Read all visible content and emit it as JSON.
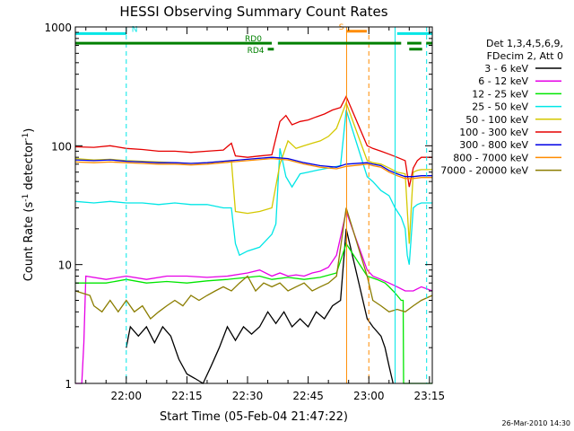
{
  "chart_data": {
    "type": "line",
    "title": "HESSI Observing Summary Count Rates",
    "xlabel": "Start Time (05-Feb-04 21:47:22)",
    "ylabel_main": "Count Rate (s",
    "ylabel_exp1": "-1",
    "ylabel_mid": " detector",
    "ylabel_exp2": "-1",
    "ylabel_end": ")",
    "timestamp": "26-Mar-2010 14:30",
    "y_scale": "log",
    "xlim_minutes": [
      -12.6,
      75.7
    ],
    "ylim": [
      1,
      1000
    ],
    "x_ticks": [
      {
        "t": 0,
        "label": "22:00"
      },
      {
        "t": 15,
        "label": "22:15"
      },
      {
        "t": 30,
        "label": "22:30"
      },
      {
        "t": 45,
        "label": "22:45"
      },
      {
        "t": 60,
        "label": "23:00"
      },
      {
        "t": 75,
        "label": "23:15"
      }
    ],
    "y_ticks": [
      {
        "v": 1,
        "label": "1"
      },
      {
        "v": 10,
        "label": "10"
      },
      {
        "v": 100,
        "label": "100"
      },
      {
        "v": 1000,
        "label": "1000"
      }
    ],
    "legend": {
      "placement": "right",
      "header": [
        "Det 1,3,4,5,6,9,",
        "FDecim 2, Att 0"
      ],
      "entries": [
        {
          "label": "3 - 6 keV",
          "color": "#000000"
        },
        {
          "label": "6 - 12 keV",
          "color": "#e600e6"
        },
        {
          "label": "12 - 25 keV",
          "color": "#00e600"
        },
        {
          "label": "25 - 50 keV",
          "color": "#00e6e6"
        },
        {
          "label": "50 - 100 keV",
          "color": "#d4c800"
        },
        {
          "label": "100 - 300 keV",
          "color": "#e60000"
        },
        {
          "label": "300 - 800 keV",
          "color": "#0000e6"
        },
        {
          "label": "800 - 7000 keV",
          "color": "#ff8c00"
        },
        {
          "label": "7000 - 20000 keV",
          "color": "#8b7d00"
        }
      ]
    },
    "flags": [
      {
        "label": "N",
        "color": "#00e6e6",
        "y": 880,
        "segments": [
          [
            -12.6,
            0
          ],
          [
            67,
            75.7
          ]
        ]
      },
      {
        "label": "S",
        "color": "#ff8c00",
        "y": 920,
        "segments": [
          [
            54.5,
            59.5
          ]
        ]
      },
      {
        "label": "RD0",
        "color": "#008000",
        "y": 730,
        "segments": [
          [
            -12.6,
            36
          ],
          [
            37.5,
            68
          ],
          [
            69.5,
            73
          ],
          [
            74.2,
            75.7
          ]
        ]
      },
      {
        "label": "RD4",
        "color": "#008000",
        "y": 650,
        "segments": [
          [
            35,
            36.5
          ],
          [
            70,
            73.2
          ]
        ]
      }
    ],
    "vlines": [
      {
        "t": 0,
        "color": "#00e6e6",
        "style": "dashed"
      },
      {
        "t": 54.5,
        "color": "#ff8c00",
        "style": "solid"
      },
      {
        "t": 60,
        "color": "#ff8c00",
        "style": "dashed"
      },
      {
        "t": 66.5,
        "color": "#00e6e6",
        "style": "solid"
      },
      {
        "t": 74.3,
        "color": "#00e6e6",
        "style": "dashed"
      }
    ],
    "series": [
      {
        "name": "3 - 6 keV",
        "color": "#000000",
        "x": [
          -12.6,
          -9,
          -5,
          -1,
          0,
          1,
          3,
          5,
          7,
          9,
          11,
          13,
          15,
          17,
          19,
          21,
          23,
          25,
          27,
          29,
          31,
          33,
          35,
          37,
          39,
          41,
          43,
          45,
          47,
          49,
          51,
          53,
          54.4,
          59.6,
          61,
          63,
          64,
          65,
          66
        ],
        "y": [
          null,
          null,
          null,
          null,
          2,
          3,
          2.5,
          3,
          2.2,
          3,
          2.5,
          1.6,
          1.2,
          1.1,
          1,
          1.4,
          2,
          3,
          2.3,
          3,
          2.6,
          3,
          4,
          3.2,
          4,
          3,
          3.5,
          3,
          4,
          3.5,
          4.5,
          5,
          20,
          3.5,
          3,
          2.5,
          2,
          1.4,
          1
        ]
      },
      {
        "name": "6 - 12 keV",
        "color": "#e600e6",
        "x": [
          -12.6,
          -11,
          -10.5,
          -10,
          -5,
          0,
          5,
          10,
          15,
          20,
          25,
          30,
          33,
          36,
          38,
          40,
          42,
          44,
          46,
          48,
          50,
          52,
          54.4,
          59.6,
          61,
          63,
          65,
          67,
          69,
          71,
          73,
          75.7
        ],
        "y": [
          1,
          1,
          2.2,
          8,
          7.5,
          8,
          7.5,
          8,
          8,
          7.8,
          8,
          8.5,
          9,
          8,
          8.5,
          8,
          8.2,
          8,
          8.5,
          8.8,
          9.5,
          12,
          28,
          9,
          8,
          7.5,
          7,
          6.5,
          6,
          6,
          6.5,
          6
        ]
      },
      {
        "name": "12 - 25 keV",
        "color": "#00e600",
        "x": [
          -12.6,
          -5,
          0,
          5,
          10,
          15,
          20,
          25,
          30,
          33,
          36,
          40,
          44,
          48,
          52,
          54.4,
          59.6,
          62,
          64,
          65,
          66,
          67,
          68,
          68.5,
          68.6,
          70,
          73,
          75.7
        ],
        "y": [
          7,
          7,
          7.5,
          7,
          7.2,
          7,
          7.3,
          7.5,
          7.8,
          8,
          7.5,
          7.8,
          7.5,
          7.8,
          8.5,
          15,
          8,
          7.5,
          7,
          6.5,
          6,
          5.5,
          5,
          5,
          1,
          1,
          1,
          1
        ]
      },
      {
        "name": "25 - 50 keV",
        "color": "#00e6e6",
        "x": [
          -12.6,
          -8,
          -4,
          0,
          4,
          8,
          12,
          16,
          20,
          24,
          26,
          27,
          28,
          30,
          33,
          36,
          37,
          38,
          39.5,
          41,
          43,
          45,
          47,
          49,
          51,
          53,
          54.4,
          59.6,
          61,
          63,
          65,
          66.5,
          68,
          69,
          69.5,
          70,
          71,
          72,
          73,
          75.7
        ],
        "y": [
          34,
          33,
          34,
          33,
          33,
          32,
          33,
          32,
          32,
          30,
          30,
          15,
          12,
          13,
          14,
          18,
          22,
          95,
          55,
          45,
          58,
          60,
          62,
          64,
          66,
          68,
          200,
          55,
          50,
          42,
          38,
          30,
          25,
          20,
          12,
          10,
          30,
          32,
          33,
          33
        ]
      },
      {
        "name": "50 - 100 keV",
        "color": "#d4c800",
        "x": [
          -12.6,
          -8,
          -4,
          0,
          4,
          8,
          12,
          16,
          20,
          24,
          26,
          27,
          30,
          33,
          36,
          38,
          40,
          42,
          44,
          46,
          48,
          50,
          52,
          54.4,
          59.6,
          61,
          63,
          65,
          67,
          69,
          70,
          71,
          72,
          73,
          75.7
        ],
        "y": [
          78,
          76,
          77,
          75,
          74,
          73,
          72,
          71,
          72,
          74,
          75,
          28,
          27,
          28,
          30,
          70,
          110,
          95,
          100,
          105,
          110,
          120,
          140,
          230,
          75,
          72,
          70,
          65,
          60,
          58,
          15,
          60,
          62,
          63,
          63
        ]
      },
      {
        "name": "100 - 300 keV",
        "color": "#e60000",
        "x": [
          -12.6,
          -8,
          -4,
          0,
          4,
          8,
          12,
          16,
          20,
          24,
          26,
          27,
          30,
          33,
          36,
          38,
          39.5,
          41,
          43,
          45,
          47,
          49,
          51,
          53,
          54.4,
          59.6,
          61,
          63,
          65,
          67,
          69,
          70,
          71,
          72,
          73,
          75.7
        ],
        "y": [
          98,
          97,
          100,
          95,
          93,
          90,
          90,
          88,
          90,
          92,
          105,
          82,
          80,
          82,
          84,
          160,
          180,
          150,
          160,
          165,
          175,
          185,
          200,
          210,
          260,
          100,
          95,
          90,
          85,
          80,
          75,
          45,
          65,
          75,
          80,
          80
        ]
      },
      {
        "name": "300 - 800 keV",
        "color": "#0000e6",
        "x": [
          -12.6,
          -8,
          -4,
          0,
          4,
          8,
          12,
          16,
          20,
          24,
          28,
          32,
          36,
          40,
          44,
          48,
          52,
          54.4,
          59.6,
          61,
          63,
          65,
          67,
          69,
          71,
          73,
          75.7
        ],
        "y": [
          76,
          75,
          76,
          74,
          73,
          72,
          72,
          71,
          72,
          74,
          76,
          78,
          80,
          78,
          72,
          68,
          66,
          70,
          72,
          70,
          68,
          62,
          58,
          55,
          55,
          56,
          56
        ]
      },
      {
        "name": "800 - 7000 keV",
        "color": "#ff8c00",
        "x": [
          -12.6,
          -8,
          -4,
          0,
          4,
          8,
          12,
          16,
          20,
          24,
          28,
          32,
          36,
          40,
          44,
          48,
          52,
          54.4,
          59.6,
          61,
          63,
          65,
          67,
          69,
          71,
          73,
          75.7
        ],
        "y": [
          73,
          72,
          73,
          72,
          71,
          70,
          70,
          69,
          70,
          72,
          74,
          76,
          78,
          76,
          70,
          66,
          64,
          67,
          70,
          68,
          66,
          60,
          56,
          53,
          53,
          54,
          54
        ]
      },
      {
        "name": "7000 - 20000 keV",
        "color": "#8b7d00",
        "x": [
          -12.6,
          -9,
          -8,
          -6,
          -4,
          -2,
          0,
          2,
          4,
          6,
          8,
          10,
          12,
          14,
          16,
          18,
          20,
          22,
          24,
          26,
          28,
          30,
          32,
          34,
          36,
          38,
          40,
          42,
          44,
          46,
          48,
          50,
          52,
          54.4,
          59.6,
          61,
          63,
          65,
          67,
          69,
          71,
          73,
          75.7
        ],
        "y": [
          6,
          5.5,
          4.5,
          4,
          5,
          4,
          5,
          4,
          4.5,
          3.5,
          4,
          4.5,
          5,
          4.5,
          5.5,
          5,
          5.5,
          6,
          6.5,
          6,
          7,
          8,
          6,
          7,
          6.5,
          7,
          6,
          6.5,
          7,
          6,
          6.5,
          7,
          8,
          30,
          8,
          5,
          4.5,
          4,
          4.2,
          4,
          4.5,
          5,
          5.5
        ]
      }
    ]
  }
}
